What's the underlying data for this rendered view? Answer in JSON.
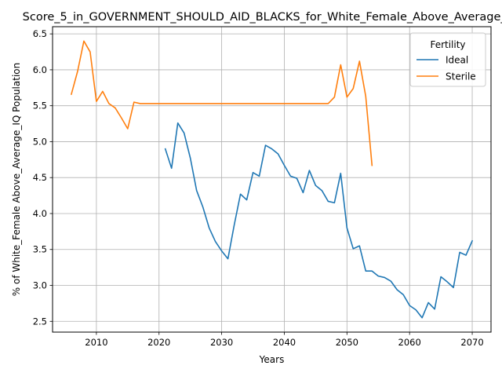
{
  "chart_data": {
    "type": "line",
    "title": "Score_5_in_GOVERNMENT_SHOULD_AID_BLACKS_for_White_Female_Above_Average_IQ",
    "xlabel": "Years",
    "ylabel": "% of White_Female Above_Average_IQ Population",
    "xlim": [
      2003,
      2073
    ],
    "ylim": [
      2.35,
      6.6
    ],
    "xticks": [
      2010,
      2020,
      2030,
      2040,
      2050,
      2060,
      2070
    ],
    "yticks": [
      2.5,
      3.0,
      3.5,
      4.0,
      4.5,
      5.0,
      5.5,
      6.0,
      6.5
    ],
    "grid": true,
    "legend": {
      "title": "Fertility",
      "placement": "upper right"
    },
    "series": [
      {
        "name": "Ideal",
        "color": "#1f77b4",
        "x": [
          2021,
          2022,
          2023,
          2024,
          2025,
          2026,
          2027,
          2028,
          2029,
          2030,
          2031,
          2032,
          2033,
          2034,
          2035,
          2036,
          2037,
          2038,
          2039,
          2040,
          2041,
          2042,
          2043,
          2044,
          2045,
          2046,
          2047,
          2048,
          2049,
          2050,
          2051,
          2052,
          2053,
          2054,
          2055,
          2056,
          2057,
          2058,
          2059,
          2060,
          2061,
          2062,
          2063,
          2064,
          2065,
          2066,
          2067,
          2068,
          2069,
          2070
        ],
        "y": [
          4.9,
          4.63,
          5.26,
          5.12,
          4.77,
          4.32,
          4.09,
          3.8,
          3.61,
          3.48,
          3.37,
          3.84,
          4.27,
          4.19,
          4.57,
          4.52,
          4.95,
          4.9,
          4.83,
          4.67,
          4.52,
          4.49,
          4.29,
          4.6,
          4.39,
          4.32,
          4.17,
          4.15,
          4.56,
          3.8,
          3.51,
          3.55,
          3.2,
          3.2,
          3.13,
          3.11,
          3.06,
          2.94,
          2.87,
          2.72,
          2.66,
          2.55,
          2.76,
          2.67,
          3.12,
          3.05,
          2.97,
          3.46,
          3.42,
          3.62
        ]
      },
      {
        "name": "Sterile",
        "color": "#ff7f0e",
        "x": [
          2006,
          2007,
          2008,
          2009,
          2010,
          2011,
          2012,
          2013,
          2014,
          2015,
          2016,
          2017,
          2018,
          2019,
          2020,
          2021,
          2022,
          2023,
          2024,
          2025,
          2026,
          2027,
          2028,
          2029,
          2030,
          2031,
          2032,
          2033,
          2034,
          2035,
          2036,
          2037,
          2038,
          2039,
          2040,
          2041,
          2042,
          2043,
          2044,
          2045,
          2046,
          2047,
          2048,
          2049,
          2050,
          2051,
          2052,
          2053,
          2054
        ],
        "y": [
          5.66,
          5.98,
          6.4,
          6.25,
          5.56,
          5.7,
          5.53,
          5.47,
          5.33,
          5.18,
          5.55,
          5.53,
          5.53,
          5.53,
          5.53,
          5.53,
          5.53,
          5.53,
          5.53,
          5.53,
          5.53,
          5.53,
          5.53,
          5.53,
          5.53,
          5.53,
          5.53,
          5.53,
          5.53,
          5.53,
          5.53,
          5.53,
          5.53,
          5.53,
          5.53,
          5.53,
          5.53,
          5.53,
          5.53,
          5.53,
          5.53,
          5.53,
          5.62,
          6.07,
          5.62,
          5.74,
          6.12,
          5.63,
          4.67
        ]
      }
    ]
  }
}
